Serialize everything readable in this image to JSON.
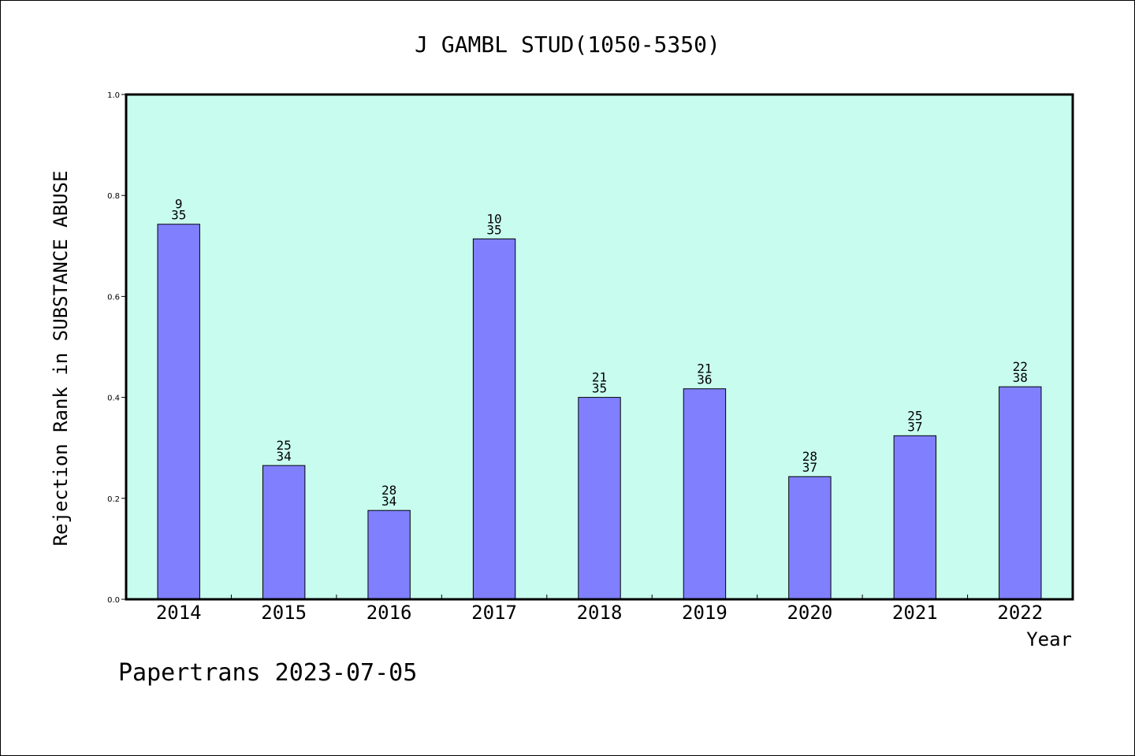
{
  "chart_data": {
    "type": "bar",
    "title": "J GAMBL STUD(1050-5350)",
    "xlabel": "Year",
    "ylabel": "Rejection Rank in SUBSTANCE ABUSE",
    "categories": [
      "2014",
      "2015",
      "2016",
      "2017",
      "2018",
      "2019",
      "2020",
      "2021",
      "2022"
    ],
    "values": [
      0.743,
      0.265,
      0.176,
      0.714,
      0.4,
      0.417,
      0.243,
      0.324,
      0.421
    ],
    "data_labels": [
      {
        "rank": "9",
        "total": "35"
      },
      {
        "rank": "25",
        "total": "34"
      },
      {
        "rank": "28",
        "total": "34"
      },
      {
        "rank": "10",
        "total": "35"
      },
      {
        "rank": "21",
        "total": "35"
      },
      {
        "rank": "21",
        "total": "36"
      },
      {
        "rank": "28",
        "total": "37"
      },
      {
        "rank": "25",
        "total": "37"
      },
      {
        "rank": "22",
        "total": "38"
      }
    ],
    "ylim": [
      0,
      1
    ],
    "yticks": [
      "0.0",
      "0.2",
      "0.4",
      "0.6",
      "0.8",
      "1.0"
    ],
    "grid": false,
    "colors": {
      "plot_background": "#c8fcee",
      "bar_fill": "#8080ff",
      "bar_stroke": "#000000"
    }
  },
  "footer": {
    "text": "Papertrans 2023-07-05"
  }
}
